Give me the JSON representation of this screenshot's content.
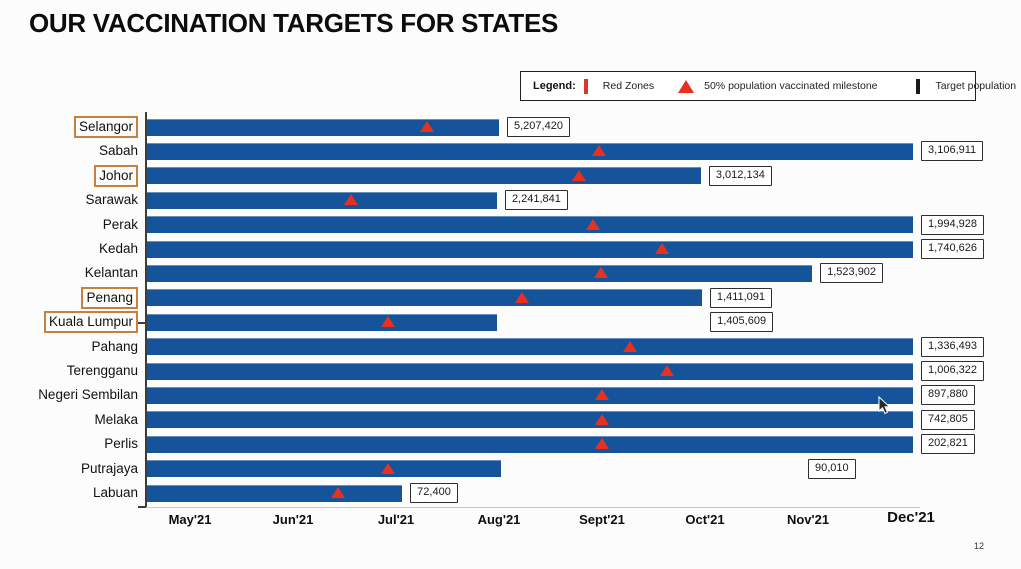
{
  "page": {
    "title": "OUR VACCINATION TARGETS FOR STATES",
    "page_number": "12"
  },
  "legend": {
    "label": "Legend:",
    "items": [
      {
        "swatch": "red-outline-box",
        "label": "Red Zones"
      },
      {
        "swatch": "red-triangle",
        "label": "50% population vaccinated milestone"
      },
      {
        "swatch": "black-outline-box",
        "label": "Target population"
      }
    ]
  },
  "colors": {
    "bar_blue": "#15549a",
    "milestone_red": "#e8301f",
    "red_zone_border": "#d6392a",
    "state_redzone_outline": "#c8803f",
    "target_outline": "#1a1a1a"
  },
  "chart_data": {
    "type": "bar",
    "orientation": "horizontal",
    "title": "OUR VACCINATION TARGETS FOR STATES",
    "x_axis": {
      "unit": "months (timeline to reach target)",
      "tick_labels": [
        "May'21",
        "Jun'21",
        "Jul'21",
        "Aug'21",
        "Sept'21",
        "Oct'21",
        "Nov'21",
        "Dec'21"
      ]
    },
    "notes": {
      "bar_end": "bar length in month units from May'21 (0) to Dec'21 (7)",
      "milestone": "position of 50% population vaccinated milestone triangle, month units",
      "label_pos": "optional detached position of target population box, month units"
    },
    "states": [
      {
        "name": "Selangor",
        "red_zone": true,
        "target_population": "5,207,420",
        "bar_end": 3.0,
        "milestone": 2.3
      },
      {
        "name": "Sabah",
        "red_zone": false,
        "target_population": "3,106,911",
        "bar_end": 7.02,
        "milestone": 3.97
      },
      {
        "name": "Johor",
        "red_zone": true,
        "target_population": "3,012,134",
        "bar_end": 4.96,
        "milestone": 3.78
      },
      {
        "name": "Sarawak",
        "red_zone": false,
        "target_population": "2,241,841",
        "bar_end": 2.98,
        "milestone": 1.56
      },
      {
        "name": "Perak",
        "red_zone": false,
        "target_population": "1,994,928",
        "bar_end": 7.02,
        "milestone": 3.91
      },
      {
        "name": "Kedah",
        "red_zone": false,
        "target_population": "1,740,626",
        "bar_end": 7.02,
        "milestone": 4.58
      },
      {
        "name": "Kelantan",
        "red_zone": false,
        "target_population": "1,523,902",
        "bar_end": 6.04,
        "milestone": 3.99
      },
      {
        "name": "Penang",
        "red_zone": true,
        "target_population": "1,411,091",
        "bar_end": 4.97,
        "milestone": 3.22
      },
      {
        "name": "Kuala Lumpur",
        "red_zone": true,
        "target_population": "1,405,609",
        "bar_end": 2.98,
        "milestone": 1.92,
        "label_pos": 5.05
      },
      {
        "name": "Pahang",
        "red_zone": false,
        "target_population": "1,336,493",
        "bar_end": 7.02,
        "milestone": 4.27
      },
      {
        "name": "Terengganu",
        "red_zone": false,
        "target_population": "1,006,322",
        "bar_end": 7.02,
        "milestone": 4.63
      },
      {
        "name": "Negeri Sembilan",
        "red_zone": false,
        "target_population": "897,880",
        "bar_end": 7.02,
        "milestone": 4.0
      },
      {
        "name": "Melaka",
        "red_zone": false,
        "target_population": "742,805",
        "bar_end": 7.02,
        "milestone": 4.0
      },
      {
        "name": "Perlis",
        "red_zone": false,
        "target_population": "202,821",
        "bar_end": 7.02,
        "milestone": 4.0
      },
      {
        "name": "Putrajaya",
        "red_zone": false,
        "target_population": "90,010",
        "bar_end": 3.02,
        "milestone": 1.92,
        "label_pos": 6.0
      },
      {
        "name": "Labuan",
        "red_zone": false,
        "target_population": "72,400",
        "bar_end": 2.06,
        "milestone": 1.44
      }
    ]
  }
}
